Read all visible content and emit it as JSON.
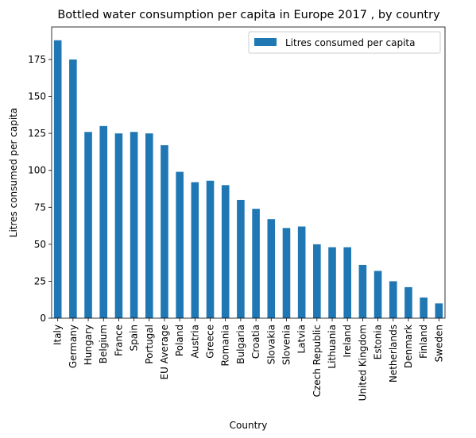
{
  "chart_data": {
    "type": "bar",
    "title": "Bottled water consumption per capita in Europe 2017 , by country",
    "xlabel": "Country",
    "ylabel": "Litres consumed per capita",
    "ylim": [
      0,
      197
    ],
    "yticks": [
      0,
      25,
      50,
      75,
      100,
      125,
      150,
      175
    ],
    "grid": false,
    "legend_position": "top-right",
    "bar_color": "#1f77b4",
    "categories": [
      "Italy",
      "Germany",
      "Hungary",
      "Belgium",
      "France",
      "Spain",
      "Portugal",
      "EU Average",
      "Poland",
      "Austria",
      "Greece",
      "Romania",
      "Bulgaria",
      "Croatia",
      "Slovakia",
      "Slovenia",
      "Latvia",
      "Czech Republic",
      "Lithuania",
      "Ireland",
      "United Kingdom",
      "Estonia",
      "Netherlands",
      "Denmark",
      "Finland",
      "Sweden"
    ],
    "series": [
      {
        "name": "Litres consumed per capita",
        "values": [
          188,
          175,
          126,
          130,
          125,
          126,
          125,
          117,
          99,
          92,
          93,
          90,
          80,
          74,
          67,
          61,
          62,
          50,
          48,
          48,
          36,
          32,
          25,
          21,
          14,
          10
        ]
      }
    ]
  }
}
